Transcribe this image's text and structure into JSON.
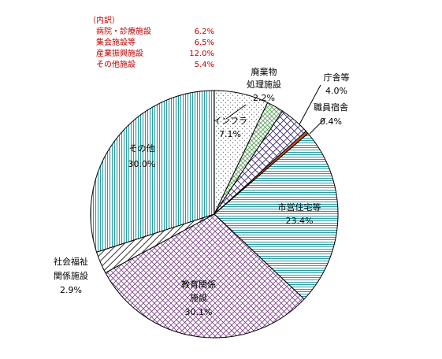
{
  "chart_data": {
    "type": "pie",
    "slices": [
      {
        "name": "インフラ",
        "pct_label": "7.1%",
        "value": 7.1,
        "pattern": "dots",
        "base": "#ffffff",
        "ink": "#777777"
      },
      {
        "name": "廃棄物処理施設",
        "pct_label": "2.2%",
        "value": 2.2,
        "pattern": "grid",
        "base": "#ffffff",
        "ink": "#3e8e3e"
      },
      {
        "name": "庁舎等",
        "pct_label": "4.0%",
        "value": 4.0,
        "pattern": "cross",
        "base": "#ffffff",
        "ink": "#3a2a6e"
      },
      {
        "name": "職員宿舎",
        "pct_label": "0.4%",
        "value": 0.4,
        "pattern": "solid",
        "base": "#c05020",
        "ink": "#c05020"
      },
      {
        "name": "市営住宅等",
        "pct_label": "23.4%",
        "value": 23.4,
        "pattern": "hlines",
        "base": "#ffffff",
        "ink": "#2b9aa0"
      },
      {
        "name": "教育関係施設",
        "pct_label": "30.1%",
        "value": 30.1,
        "pattern": "diamond",
        "base": "#ffffff",
        "ink": "#7a3d86"
      },
      {
        "name": "社会福祉関係施設",
        "pct_label": "2.9%",
        "value": 2.9,
        "pattern": "diag",
        "base": "#ffffff",
        "ink": "#333333"
      },
      {
        "name": "その他",
        "pct_label": "30.0%",
        "value": 30.0,
        "pattern": "vlines",
        "base": "#ffffff",
        "ink": "#2b9aa0"
      }
    ],
    "breakdown": {
      "title": "（内訳）",
      "items": [
        {
          "name": "病院・診療施設",
          "pct": "6.2%"
        },
        {
          "name": "集会施設等",
          "pct": "6.5%"
        },
        {
          "name": "産業振興施設",
          "pct": "12.0%"
        },
        {
          "name": "その他施設",
          "pct": "5.4%"
        }
      ]
    }
  },
  "labels": {
    "infra": [
      "インフラ",
      "7.1%"
    ],
    "waste": [
      "廃棄物",
      "処理施設",
      "2.2%"
    ],
    "chosha": [
      "庁舎等",
      "4.0%"
    ],
    "shukusha": [
      "職員宿舎",
      "0.4%"
    ],
    "jutaku": [
      "市営住宅等",
      "23.4%"
    ],
    "kyoiku": [
      "教育関係",
      "施設",
      "30.1%"
    ],
    "fukushi": [
      "社会福祉",
      "関係施設",
      "2.9%"
    ],
    "other": [
      "その他",
      "30.0%"
    ]
  }
}
